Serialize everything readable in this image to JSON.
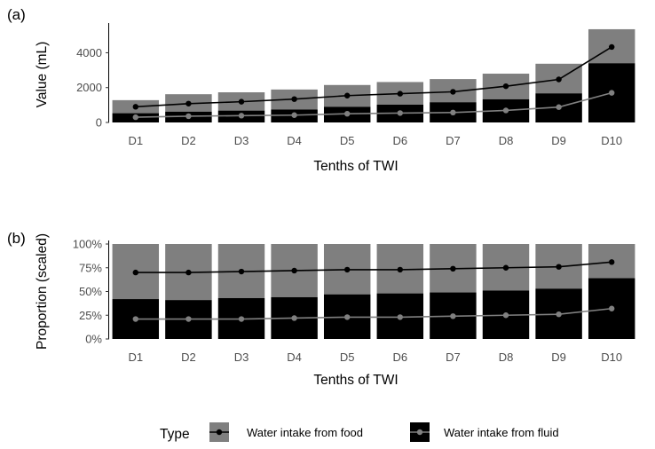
{
  "colors": {
    "food_bar": "#7f7f7f",
    "fluid_bar": "#000000",
    "food_line": "#000000",
    "fluid_line": "#808080",
    "tick_text": "#4d4d4d"
  },
  "chart_data": [
    {
      "panel_label": "(a)",
      "type": "bar",
      "stacked": true,
      "categories": [
        "D1",
        "D2",
        "D3",
        "D4",
        "D5",
        "D6",
        "D7",
        "D8",
        "D9",
        "D10"
      ],
      "series": [
        {
          "name": "Water intake from food",
          "kind": "bar",
          "values": [
            750,
            1000,
            1050,
            1150,
            1250,
            1300,
            1330,
            1470,
            1700,
            1950
          ]
        },
        {
          "name": "Water intake from fluid",
          "kind": "bar",
          "values": [
            530,
            620,
            680,
            740,
            900,
            1020,
            1160,
            1330,
            1670,
            3400
          ]
        },
        {
          "name": "Water intake from food",
          "kind": "line",
          "values": [
            900,
            1080,
            1190,
            1340,
            1540,
            1650,
            1760,
            2080,
            2470,
            4330
          ]
        },
        {
          "name": "Water intake from fluid",
          "kind": "line",
          "values": [
            300,
            360,
            390,
            420,
            500,
            540,
            570,
            690,
            880,
            1700
          ]
        }
      ],
      "xlabel": "Tenths of TWI",
      "ylabel": "Value (mL)",
      "ylim": [
        0,
        5500
      ],
      "yticks": [
        0,
        2000,
        4000
      ],
      "ytick_labels": [
        "0",
        "2000",
        "4000"
      ],
      "grid": false
    },
    {
      "panel_label": "(b)",
      "type": "bar",
      "stacked": true,
      "categories": [
        "D1",
        "D2",
        "D3",
        "D4",
        "D5",
        "D6",
        "D7",
        "D8",
        "D9",
        "D10"
      ],
      "series": [
        {
          "name": "Water intake from food",
          "kind": "bar",
          "values": [
            0.58,
            0.59,
            0.57,
            0.56,
            0.53,
            0.52,
            0.51,
            0.49,
            0.47,
            0.36
          ]
        },
        {
          "name": "Water intake from fluid",
          "kind": "bar",
          "values": [
            0.42,
            0.41,
            0.43,
            0.44,
            0.47,
            0.48,
            0.49,
            0.51,
            0.53,
            0.64
          ]
        },
        {
          "name": "Water intake from food",
          "kind": "line",
          "values": [
            0.7,
            0.7,
            0.71,
            0.72,
            0.73,
            0.73,
            0.74,
            0.75,
            0.76,
            0.81
          ]
        },
        {
          "name": "Water intake from fluid",
          "kind": "line",
          "values": [
            0.21,
            0.21,
            0.21,
            0.22,
            0.23,
            0.23,
            0.24,
            0.25,
            0.26,
            0.32
          ]
        }
      ],
      "xlabel": "Tenths of TWI",
      "ylabel": "Proportion (scaled)",
      "ylim": [
        0,
        1
      ],
      "yticks": [
        0,
        0.25,
        0.5,
        0.75,
        1
      ],
      "ytick_labels": [
        "0%",
        "25%",
        "50%",
        "75%",
        "100%"
      ],
      "grid": false
    }
  ],
  "legend": {
    "title": "Type",
    "position": "bottom",
    "items": [
      {
        "label": "Water intake from food",
        "fill": "#7f7f7f",
        "line": "#000000"
      },
      {
        "label": "Water intake from fluid",
        "fill": "#000000",
        "line": "#808080"
      }
    ]
  }
}
